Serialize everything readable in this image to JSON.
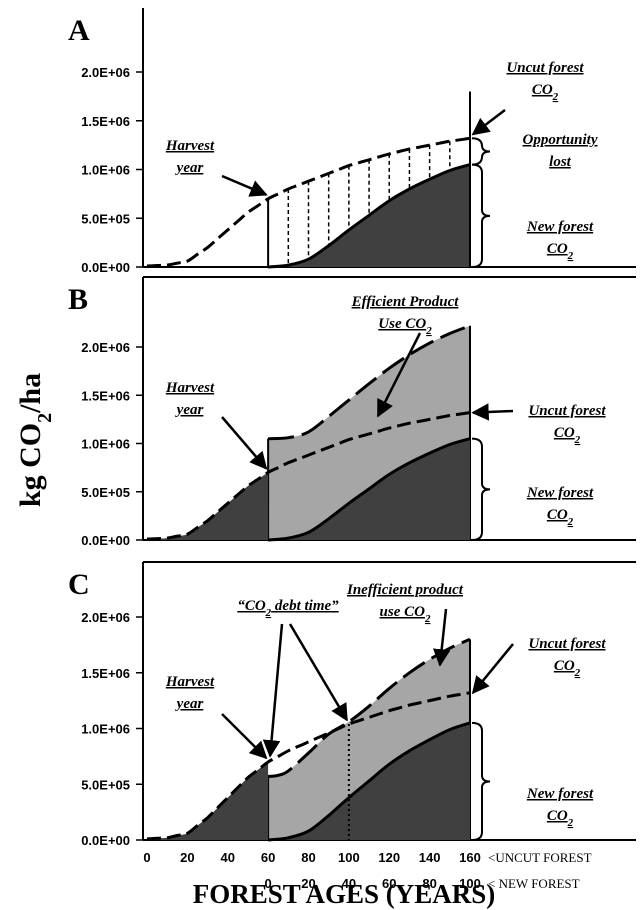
{
  "chart_data": {
    "type": "area",
    "ylabel": "kg CO2/ha",
    "xlabel": "FOREST AGES (YEARS)",
    "x_ticks_uncut": [
      "0",
      "20",
      "40",
      "60",
      "80",
      "100",
      "120",
      "140",
      "160"
    ],
    "x_ticks_new": [
      "0",
      "20",
      "40",
      "60",
      "80",
      "100"
    ],
    "x_row_labels": {
      "uncut": "<UNCUT FOREST",
      "new": "< NEW FOREST"
    },
    "y_ticks": [
      "0.0E+00",
      "5.0E+05",
      "1.0E+06",
      "1.5E+06",
      "2.0E+06"
    ],
    "xlim": [
      0,
      160
    ],
    "ylim": [
      0,
      2300000
    ],
    "harvest_year": 60,
    "uncut_forest": {
      "x": [
        0,
        10,
        20,
        30,
        40,
        50,
        60,
        70,
        80,
        90,
        100,
        110,
        120,
        130,
        140,
        150,
        160
      ],
      "y": [
        10000,
        20000,
        60000,
        200000,
        380000,
        560000,
        700000,
        800000,
        880000,
        960000,
        1040000,
        1100000,
        1160000,
        1210000,
        1250000,
        1290000,
        1320000
      ]
    },
    "new_forest": {
      "x": [
        60,
        70,
        80,
        90,
        100,
        110,
        120,
        130,
        140,
        150,
        160
      ],
      "y": [
        0,
        20000,
        80000,
        220000,
        380000,
        530000,
        680000,
        800000,
        900000,
        990000,
        1050000
      ]
    },
    "efficient_product_use": {
      "x": [
        60,
        70,
        80,
        90,
        100,
        110,
        120,
        130,
        140,
        150,
        160
      ],
      "y": [
        1050000,
        1060000,
        1120000,
        1280000,
        1450000,
        1620000,
        1780000,
        1920000,
        2040000,
        2140000,
        2220000
      ]
    },
    "inefficient_product_use": {
      "x": [
        60,
        65,
        70,
        80,
        90,
        100,
        110,
        120,
        130,
        140,
        150,
        160
      ],
      "y": [
        570000,
        580000,
        620000,
        780000,
        950000,
        1060000,
        1200000,
        1360000,
        1500000,
        1620000,
        1720000,
        1800000
      ]
    },
    "co2_debt_time_x": 100,
    "panels": [
      {
        "letter": "A",
        "annotations": {
          "harvest": [
            "Harvest",
            "year"
          ],
          "uncut": [
            "Uncut forest",
            "CO2"
          ],
          "opportunity": [
            "Opportunity",
            "lost"
          ],
          "new": [
            "New forest",
            "CO2"
          ]
        }
      },
      {
        "letter": "B",
        "annotations": {
          "harvest": [
            "Harvest",
            "year"
          ],
          "product": [
            "Efficient Product",
            "Use CO2"
          ],
          "uncut": [
            "Uncut forest",
            "CO2"
          ],
          "new": [
            "New forest",
            "CO2"
          ]
        }
      },
      {
        "letter": "C",
        "annotations": {
          "harvest": [
            "Harvest",
            "year"
          ],
          "debt": "“CO2 debt time”",
          "product": [
            "Inefficient product",
            "use CO2"
          ],
          "uncut": [
            "Uncut forest",
            "CO2"
          ],
          "new": [
            "New forest",
            "CO2"
          ]
        }
      }
    ]
  },
  "colors": {
    "new_forest_fill": "#404040",
    "product_fill": "#a6a6a6",
    "line": "#000000",
    "background": "#ffffff"
  }
}
